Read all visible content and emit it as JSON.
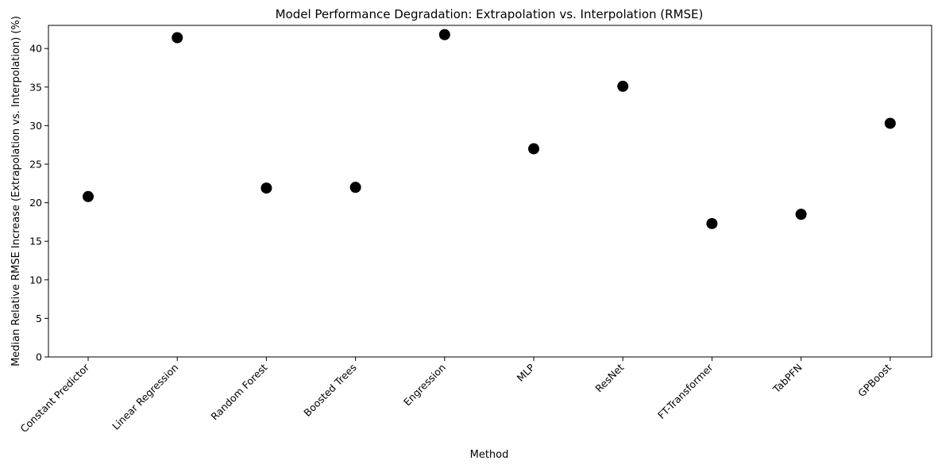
{
  "chart_data": {
    "type": "scatter",
    "title": "Model Performance Degradation: Extrapolation vs. Interpolation (RMSE)",
    "xlabel": "Method",
    "ylabel": "Median Relative RMSE Increase (Extrapolation vs. Interpolation) (%)",
    "categories": [
      "Constant Predictor",
      "Linear Regression",
      "Random Forest",
      "Boosted Trees",
      "Engression",
      "MLP",
      "ResNet",
      "FT-Transformer",
      "TabPFN",
      "GPBoost"
    ],
    "values": [
      20.8,
      41.4,
      21.9,
      22.0,
      41.8,
      27.0,
      35.1,
      17.3,
      18.5,
      30.3
    ],
    "ylim": [
      0,
      43
    ],
    "yticks": [
      0,
      5,
      10,
      15,
      20,
      25,
      30,
      35,
      40
    ],
    "grid": false,
    "marker_color": "#000000"
  }
}
